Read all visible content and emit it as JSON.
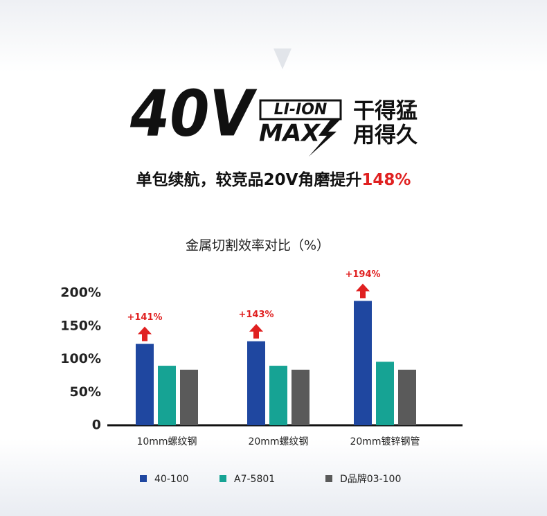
{
  "header": {
    "big": "40V",
    "badge_top": "LI-ION",
    "badge_bottom": "MAX",
    "slogan_1": "干得猛",
    "slogan_2": "用得久",
    "subtitle": "单包续航，较竞品20V角磨提升",
    "subtitle_highlight": "148%"
  },
  "chart_data": {
    "type": "bar",
    "title": "金属切割效率对比（%）",
    "categories": [
      "10mm螺纹钢",
      "20mm螺纹钢",
      "20mm镀锌钢管"
    ],
    "series": [
      {
        "name": "40-100",
        "color": "#1f47a0",
        "values": [
          123,
          127,
          188
        ]
      },
      {
        "name": "A7-5801",
        "color": "#16a394",
        "values": [
          90,
          90,
          96
        ]
      },
      {
        "name": "D品牌03-100",
        "color": "#5a5a5a",
        "values": [
          84,
          84,
          84
        ]
      }
    ],
    "annotations": [
      "+141%",
      "+143%",
      "+194%"
    ],
    "ylim": [
      0,
      200
    ],
    "yticks": [
      0,
      {
        "value": 50,
        "label": "50%"
      },
      {
        "value": 100,
        "label": "100%"
      },
      {
        "value": 150,
        "label": "150%"
      },
      {
        "value": 200,
        "label": "200%"
      }
    ],
    "grid": false
  }
}
